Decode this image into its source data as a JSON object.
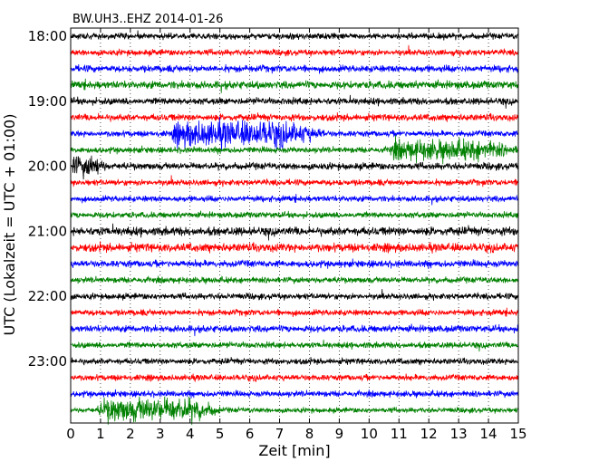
{
  "chart_data": {
    "type": "line",
    "title": "BW.UH3..EHZ 2014-01-26",
    "xlabel": "Zeit  [min]",
    "ylabel": "UTC (Lokalzeit = UTC + 01:00)",
    "xlim": [
      0,
      15
    ],
    "x_ticks": [
      "0",
      "1",
      "2",
      "3",
      "4",
      "5",
      "6",
      "7",
      "8",
      "9",
      "10",
      "11",
      "12",
      "13",
      "14",
      "15"
    ],
    "y_tick_labels": [
      "18:00",
      "19:00",
      "20:00",
      "21:00",
      "22:00",
      "23:00"
    ],
    "grid": "x-dotted",
    "trace_interval_min": 15,
    "trace_colors": [
      "#000000",
      "#ff0000",
      "#0000ff",
      "#008000"
    ],
    "traces": [
      {
        "start": "18:00",
        "amplitude": 0.35
      },
      {
        "start": "18:15",
        "amplitude": 0.35
      },
      {
        "start": "18:30",
        "amplitude": 0.4
      },
      {
        "start": "18:45",
        "amplitude": 0.45
      },
      {
        "start": "19:00",
        "amplitude": 0.4
      },
      {
        "start": "19:15",
        "amplitude": 0.4
      },
      {
        "start": "19:30",
        "amplitude": 0.35,
        "event": {
          "from": 3.2,
          "to": 8.5,
          "amplitude": 1.5
        }
      },
      {
        "start": "19:45",
        "amplitude": 0.35,
        "event": {
          "from": 10.5,
          "to": 15,
          "amplitude": 1.2
        }
      },
      {
        "start": "20:00",
        "amplitude": 0.4,
        "event": {
          "from": 0,
          "to": 1.2,
          "amplitude": 1.2
        }
      },
      {
        "start": "20:15",
        "amplitude": 0.35
      },
      {
        "start": "20:30",
        "amplitude": 0.35
      },
      {
        "start": "20:45",
        "amplitude": 0.35
      },
      {
        "start": "21:00",
        "amplitude": 0.5
      },
      {
        "start": "21:15",
        "amplitude": 0.5
      },
      {
        "start": "21:30",
        "amplitude": 0.4
      },
      {
        "start": "21:45",
        "amplitude": 0.35
      },
      {
        "start": "22:00",
        "amplitude": 0.35
      },
      {
        "start": "22:15",
        "amplitude": 0.35
      },
      {
        "start": "22:30",
        "amplitude": 0.4
      },
      {
        "start": "22:45",
        "amplitude": 0.35
      },
      {
        "start": "23:00",
        "amplitude": 0.35
      },
      {
        "start": "23:15",
        "amplitude": 0.35
      },
      {
        "start": "23:30",
        "amplitude": 0.35
      },
      {
        "start": "23:45",
        "amplitude": 0.3,
        "event": {
          "from": 0.8,
          "to": 5.0,
          "amplitude": 1.4
        }
      }
    ]
  }
}
